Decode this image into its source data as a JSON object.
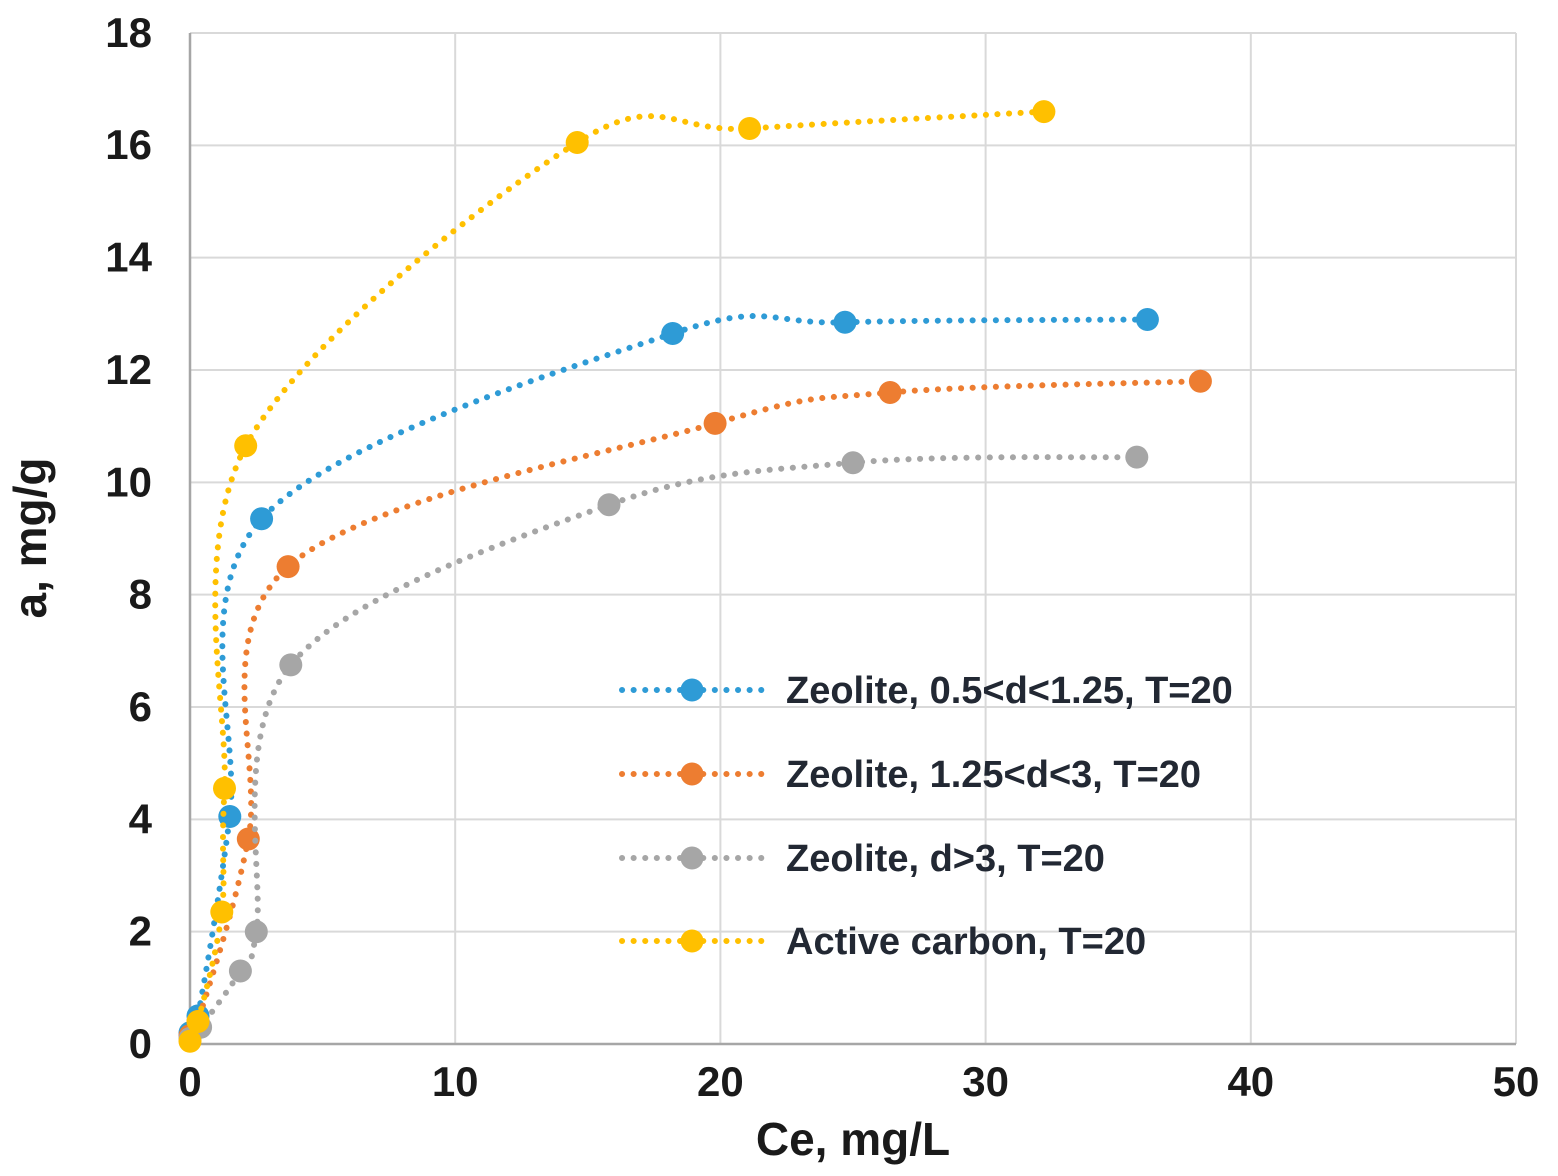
{
  "chart_data": {
    "type": "scatter",
    "title": "",
    "xlabel": "Ce, mg/L",
    "ylabel": "a, mg/g",
    "xlim": [
      0,
      50
    ],
    "ylim": [
      0,
      18
    ],
    "xticks": [
      0,
      10,
      20,
      30,
      40,
      50
    ],
    "yticks": [
      0,
      2,
      4,
      6,
      8,
      10,
      12,
      14,
      16,
      18
    ],
    "grid": true,
    "line_style": "dotted",
    "marker": "circle",
    "legend_position": "inside-right-middle",
    "series": [
      {
        "name": "Zeolite, 0.5<d<1.25, T=20",
        "color": "#2E9BD6",
        "points": [
          [
            0,
            0.2
          ],
          [
            0.3,
            0.5
          ],
          [
            1.5,
            4.05
          ],
          [
            2.7,
            9.35
          ],
          [
            18.2,
            12.65
          ],
          [
            24.7,
            12.85
          ],
          [
            36.1,
            12.9
          ]
        ]
      },
      {
        "name": "Zeolite, 1.25<d<3, T=20",
        "color": "#ED7D31",
        "points": [
          [
            0,
            0.15
          ],
          [
            0.3,
            0.4
          ],
          [
            2.2,
            3.65
          ],
          [
            3.7,
            8.5
          ],
          [
            19.8,
            11.05
          ],
          [
            26.4,
            11.6
          ],
          [
            38.1,
            11.8
          ]
        ]
      },
      {
        "name": "Zeolite, d>3, T=20",
        "color": "#A6A6A6",
        "points": [
          [
            0,
            0.1
          ],
          [
            0.4,
            0.3
          ],
          [
            1.9,
            1.3
          ],
          [
            2.5,
            2.0
          ],
          [
            3.8,
            6.75
          ],
          [
            15.8,
            9.6
          ],
          [
            25,
            10.35
          ],
          [
            35.7,
            10.45
          ]
        ]
      },
      {
        "name": "Active carbon, T=20",
        "color": "#FFC000",
        "points": [
          [
            0,
            0.05
          ],
          [
            0.3,
            0.4
          ],
          [
            1.2,
            2.35
          ],
          [
            1.3,
            4.55
          ],
          [
            2.1,
            10.65
          ],
          [
            14.6,
            16.05
          ],
          [
            21.1,
            16.3
          ],
          [
            32.2,
            16.6
          ]
        ]
      }
    ]
  },
  "styles": {
    "background": "#ffffff",
    "grid_color": "#d9d9d9",
    "axis_color": "#a6a6a6",
    "tick_color": "#1a1a1a",
    "legend_text_color": "#222833"
  }
}
